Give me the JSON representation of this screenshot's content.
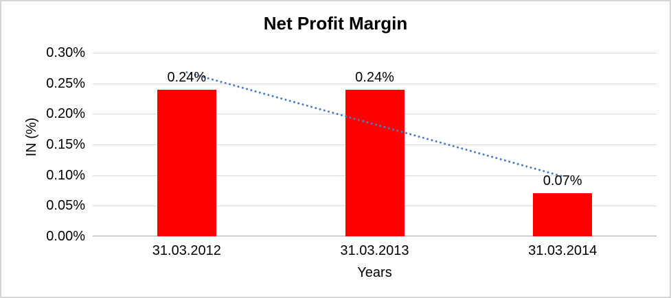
{
  "chart_data": {
    "type": "bar",
    "title": "Net Profit Margin",
    "xlabel": "Years",
    "ylabel": "IN (%)",
    "categories": [
      "31.03.2012",
      "31.03.2013",
      "31.03.2014"
    ],
    "values": [
      0.24,
      0.24,
      0.07
    ],
    "data_labels": [
      "0.24%",
      "0.24%",
      "0.07%"
    ],
    "ylim": [
      0,
      0.3
    ],
    "yticks": [
      0,
      0.05,
      0.1,
      0.15,
      0.2,
      0.25,
      0.3
    ],
    "ytick_labels": [
      "0.00%",
      "0.05%",
      "0.10%",
      "0.15%",
      "0.20%",
      "0.25%",
      "0.30%"
    ],
    "grid": true,
    "legend": false,
    "bar_color": "#ff0000",
    "trendline": {
      "type": "linear",
      "style": "dotted",
      "color": "#4a7ebb",
      "values_at_categories": [
        0.268,
        0.183,
        0.098
      ]
    }
  }
}
